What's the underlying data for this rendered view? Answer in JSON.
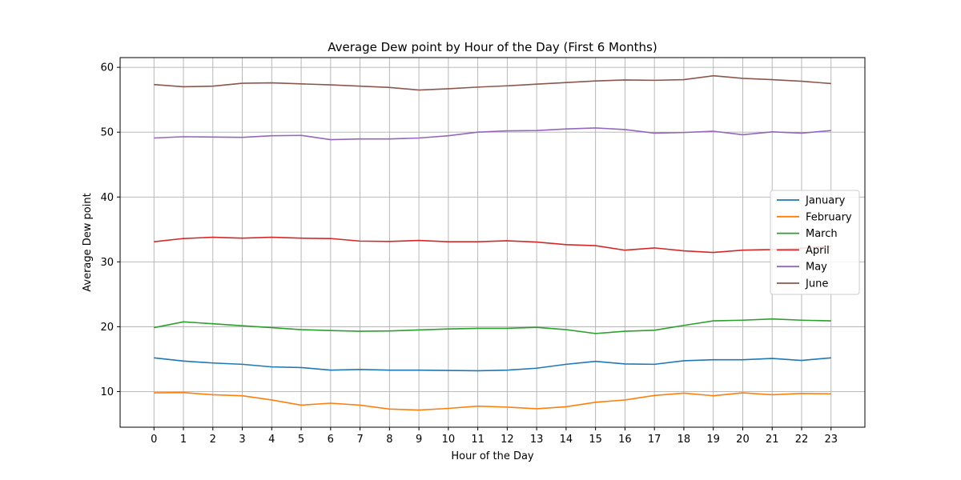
{
  "chart_data": {
    "type": "line",
    "title": "Average Dew point by Hour of the Day (First 6 Months)",
    "xlabel": "Hour of the Day",
    "ylabel": "Average Dew point",
    "x": [
      0,
      1,
      2,
      3,
      4,
      5,
      6,
      7,
      8,
      9,
      10,
      11,
      12,
      13,
      14,
      15,
      16,
      17,
      18,
      19,
      20,
      21,
      22,
      23
    ],
    "xlim": [
      -1.15,
      24.15
    ],
    "ylim": [
      4.5,
      61.5
    ],
    "yticks": [
      10,
      20,
      30,
      40,
      50,
      60
    ],
    "grid": true,
    "legend_position": "center-right",
    "series": [
      {
        "name": "January",
        "color": "#1f77b4",
        "values": [
          15.2,
          14.7,
          14.4,
          14.2,
          13.8,
          13.7,
          13.3,
          13.4,
          13.3,
          13.3,
          13.25,
          13.2,
          13.3,
          13.6,
          14.2,
          14.65,
          14.25,
          14.2,
          14.75,
          14.9,
          14.9,
          15.1,
          14.8,
          15.2
        ]
      },
      {
        "name": "February",
        "color": "#ff7f0e",
        "values": [
          9.8,
          9.85,
          9.5,
          9.35,
          8.7,
          7.9,
          8.2,
          7.9,
          7.3,
          7.15,
          7.4,
          7.75,
          7.6,
          7.35,
          7.65,
          8.35,
          8.7,
          9.4,
          9.75,
          9.35,
          9.8,
          9.5,
          9.7,
          9.65
        ]
      },
      {
        "name": "March",
        "color": "#2ca02c",
        "values": [
          19.85,
          20.75,
          20.45,
          20.15,
          19.85,
          19.55,
          19.4,
          19.3,
          19.35,
          19.5,
          19.65,
          19.75,
          19.75,
          19.9,
          19.55,
          18.95,
          19.3,
          19.45,
          20.2,
          20.9,
          21.0,
          21.2,
          21.0,
          20.9
        ]
      },
      {
        "name": "April",
        "color": "#d62728",
        "values": [
          33.1,
          33.6,
          33.8,
          33.65,
          33.8,
          33.65,
          33.6,
          33.2,
          33.15,
          33.3,
          33.1,
          33.1,
          33.25,
          33.05,
          32.65,
          32.5,
          31.8,
          32.15,
          31.7,
          31.45,
          31.8,
          31.9,
          32.1,
          32.4
        ]
      },
      {
        "name": "May",
        "color": "#9467bd",
        "values": [
          49.1,
          49.3,
          49.25,
          49.2,
          49.45,
          49.5,
          48.85,
          48.95,
          48.95,
          49.1,
          49.45,
          50.0,
          50.2,
          50.25,
          50.5,
          50.65,
          50.4,
          49.85,
          49.95,
          50.15,
          49.6,
          50.05,
          49.85,
          50.25
        ]
      },
      {
        "name": "June",
        "color": "#8c564b",
        "values": [
          57.35,
          57.0,
          57.1,
          57.55,
          57.6,
          57.45,
          57.3,
          57.1,
          56.9,
          56.5,
          56.7,
          56.95,
          57.15,
          57.4,
          57.65,
          57.9,
          58.05,
          58.0,
          58.1,
          58.7,
          58.3,
          58.1,
          57.85,
          57.5
        ]
      }
    ]
  }
}
